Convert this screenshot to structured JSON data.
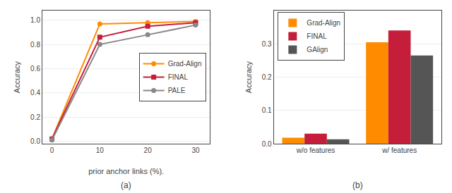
{
  "chart_data": [
    {
      "type": "line",
      "x": [
        0,
        10,
        20,
        30
      ],
      "series": [
        {
          "name": "Grad-Align",
          "color": "#FF8C00",
          "marker": "circle",
          "values": [
            0.02,
            0.97,
            0.98,
            0.99
          ]
        },
        {
          "name": "FINAL",
          "color": "#C41E3A",
          "marker": "square",
          "values": [
            0.02,
            0.86,
            0.95,
            0.98
          ]
        },
        {
          "name": "PALE",
          "color": "#888888",
          "marker": "circle",
          "values": [
            0.01,
            0.8,
            0.88,
            0.96
          ]
        }
      ],
      "xlabel": "prior anchor links (%).",
      "ylabel": "Accuracy",
      "xlim": [
        -2,
        33
      ],
      "ylim": [
        -0.02,
        1.08
      ],
      "xticks": [
        0,
        10,
        20,
        30
      ],
      "yticks": [
        {
          "value": 0.0,
          "label": "0.0"
        },
        0.2,
        0.4,
        0.6,
        0.8,
        {
          "value": 1.0,
          "label": "1.0"
        }
      ],
      "grid": true,
      "legend": "center right",
      "annotations": [
        "(a)"
      ]
    },
    {
      "type": "bar",
      "categories": [
        "w/o features",
        "w/ features"
      ],
      "series": [
        {
          "name": "Grad-Align",
          "color": "#FF8C00",
          "values": [
            0.018,
            0.305
          ]
        },
        {
          "name": "FINAL",
          "color": "#C41E3A",
          "values": [
            0.03,
            0.34
          ]
        },
        {
          "name": "GAlign",
          "color": "#555555",
          "values": [
            0.013,
            0.265
          ]
        }
      ],
      "ylabel": "Accuracy",
      "ylim": [
        0,
        0.4
      ],
      "yticks": [
        {
          "value": 0.0,
          "label": "0.0"
        },
        0.1,
        0.2,
        0.3
      ],
      "grid": true,
      "legend": "upper left",
      "annotations": [
        "(b)"
      ]
    }
  ]
}
